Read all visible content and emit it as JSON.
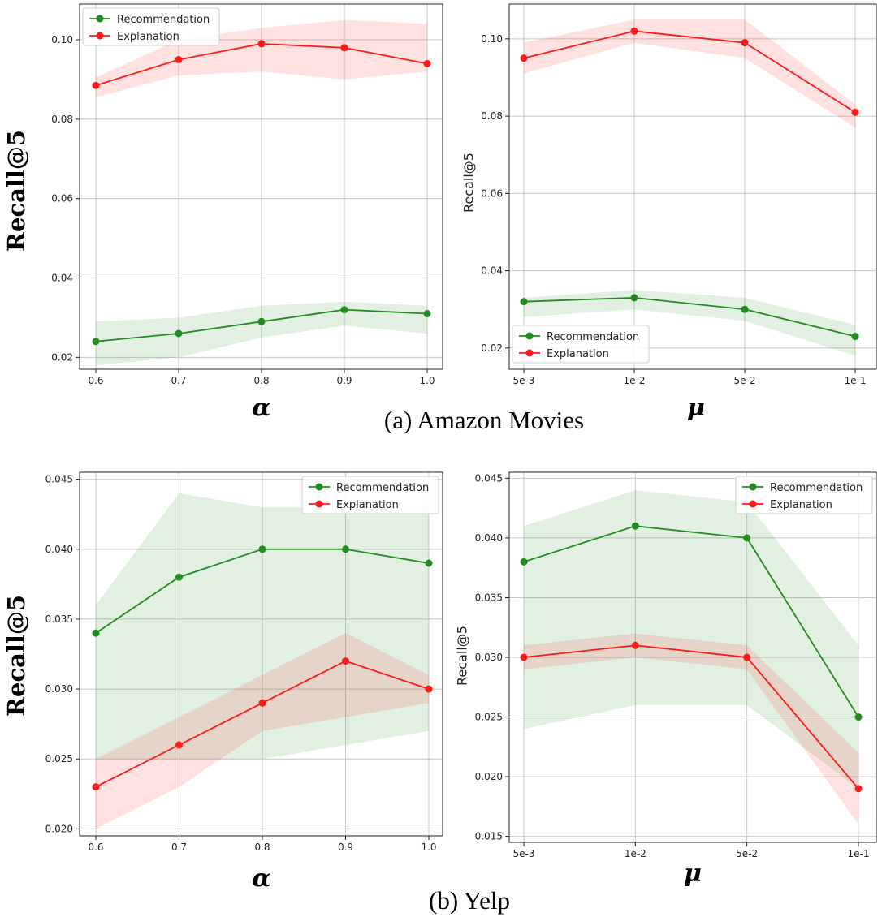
{
  "chart_data": [
    {
      "type": "line",
      "panel": "a-left",
      "xlabel": "α",
      "ylabel": "Recall@5",
      "ylabel_style": "bold",
      "categories": [
        "0.6",
        "0.7",
        "0.8",
        "0.9",
        "1.0"
      ],
      "y_ticks": [
        "0.02",
        "0.04",
        "0.06",
        "0.08",
        "0.10"
      ],
      "ylim": [
        0.017,
        0.109
      ],
      "grid": true,
      "legend": "upper-left",
      "series": [
        {
          "name": "Recommendation",
          "color": "#228B22",
          "values": [
            0.024,
            0.026,
            0.029,
            0.032,
            0.031
          ],
          "lower": [
            0.018,
            0.02,
            0.025,
            0.028,
            0.026
          ],
          "upper": [
            0.029,
            0.03,
            0.033,
            0.034,
            0.033
          ]
        },
        {
          "name": "Explanation",
          "color": "#ff1a1a",
          "values": [
            0.0885,
            0.095,
            0.099,
            0.098,
            0.094
          ],
          "lower": [
            0.0855,
            0.091,
            0.092,
            0.09,
            0.092
          ],
          "upper": [
            0.0905,
            0.1,
            0.103,
            0.105,
            0.104
          ]
        }
      ]
    },
    {
      "type": "line",
      "panel": "a-right",
      "xlabel": "μ",
      "ylabel": "Recall@5",
      "ylabel_style": "plain",
      "categories": [
        "5e-3",
        "1e-2",
        "5e-2",
        "1e-1"
      ],
      "y_ticks": [
        "0.02",
        "0.04",
        "0.06",
        "0.08",
        "0.10"
      ],
      "ylim": [
        0.0145,
        0.109
      ],
      "grid": true,
      "legend": "lower-left",
      "series": [
        {
          "name": "Recommendation",
          "color": "#228B22",
          "values": [
            0.032,
            0.033,
            0.03,
            0.023
          ],
          "lower": [
            0.028,
            0.03,
            0.027,
            0.018
          ],
          "upper": [
            0.033,
            0.035,
            0.033,
            0.026
          ]
        },
        {
          "name": "Explanation",
          "color": "#ff1a1a",
          "values": [
            0.095,
            0.102,
            0.099,
            0.081
          ],
          "lower": [
            0.091,
            0.099,
            0.095,
            0.077
          ],
          "upper": [
            0.099,
            0.105,
            0.105,
            0.083
          ]
        }
      ]
    },
    {
      "type": "line",
      "panel": "b-left",
      "xlabel": "α",
      "ylabel": "Recall@5",
      "ylabel_style": "bold",
      "categories": [
        "0.6",
        "0.7",
        "0.8",
        "0.9",
        "1.0"
      ],
      "y_ticks": [
        "0.020",
        "0.025",
        "0.030",
        "0.035",
        "0.040",
        "0.045"
      ],
      "ylim": [
        0.0195,
        0.0455
      ],
      "grid": true,
      "legend": "upper-right",
      "series": [
        {
          "name": "Recommendation",
          "color": "#228B22",
          "values": [
            0.034,
            0.038,
            0.04,
            0.04,
            0.039
          ],
          "lower": [
            0.025,
            0.025,
            0.025,
            0.026,
            0.027
          ],
          "upper": [
            0.036,
            0.044,
            0.043,
            0.043,
            0.043
          ]
        },
        {
          "name": "Explanation",
          "color": "#ff1a1a",
          "values": [
            0.023,
            0.026,
            0.029,
            0.032,
            0.03
          ],
          "lower": [
            0.02,
            0.023,
            0.027,
            0.028,
            0.029
          ],
          "upper": [
            0.025,
            0.028,
            0.031,
            0.034,
            0.031
          ]
        }
      ]
    },
    {
      "type": "line",
      "panel": "b-right",
      "xlabel": "μ",
      "ylabel": "Recall@5",
      "ylabel_style": "plain",
      "categories": [
        "5e-3",
        "1e-2",
        "5e-2",
        "1e-1"
      ],
      "y_ticks": [
        "0.015",
        "0.020",
        "0.025",
        "0.030",
        "0.035",
        "0.040",
        "0.045"
      ],
      "ylim": [
        0.0145,
        0.0455
      ],
      "grid": true,
      "legend": "upper-right",
      "series": [
        {
          "name": "Recommendation",
          "color": "#228B22",
          "values": [
            0.038,
            0.041,
            0.04,
            0.025
          ],
          "lower": [
            0.024,
            0.026,
            0.026,
            0.019
          ],
          "upper": [
            0.041,
            0.044,
            0.043,
            0.031
          ]
        },
        {
          "name": "Explanation",
          "color": "#ff1a1a",
          "values": [
            0.03,
            0.031,
            0.03,
            0.019
          ],
          "lower": [
            0.029,
            0.03,
            0.029,
            0.016
          ],
          "upper": [
            0.031,
            0.032,
            0.031,
            0.022
          ]
        }
      ]
    }
  ],
  "captions": [
    "(a) Amazon Movies",
    "(b) Yelp"
  ]
}
